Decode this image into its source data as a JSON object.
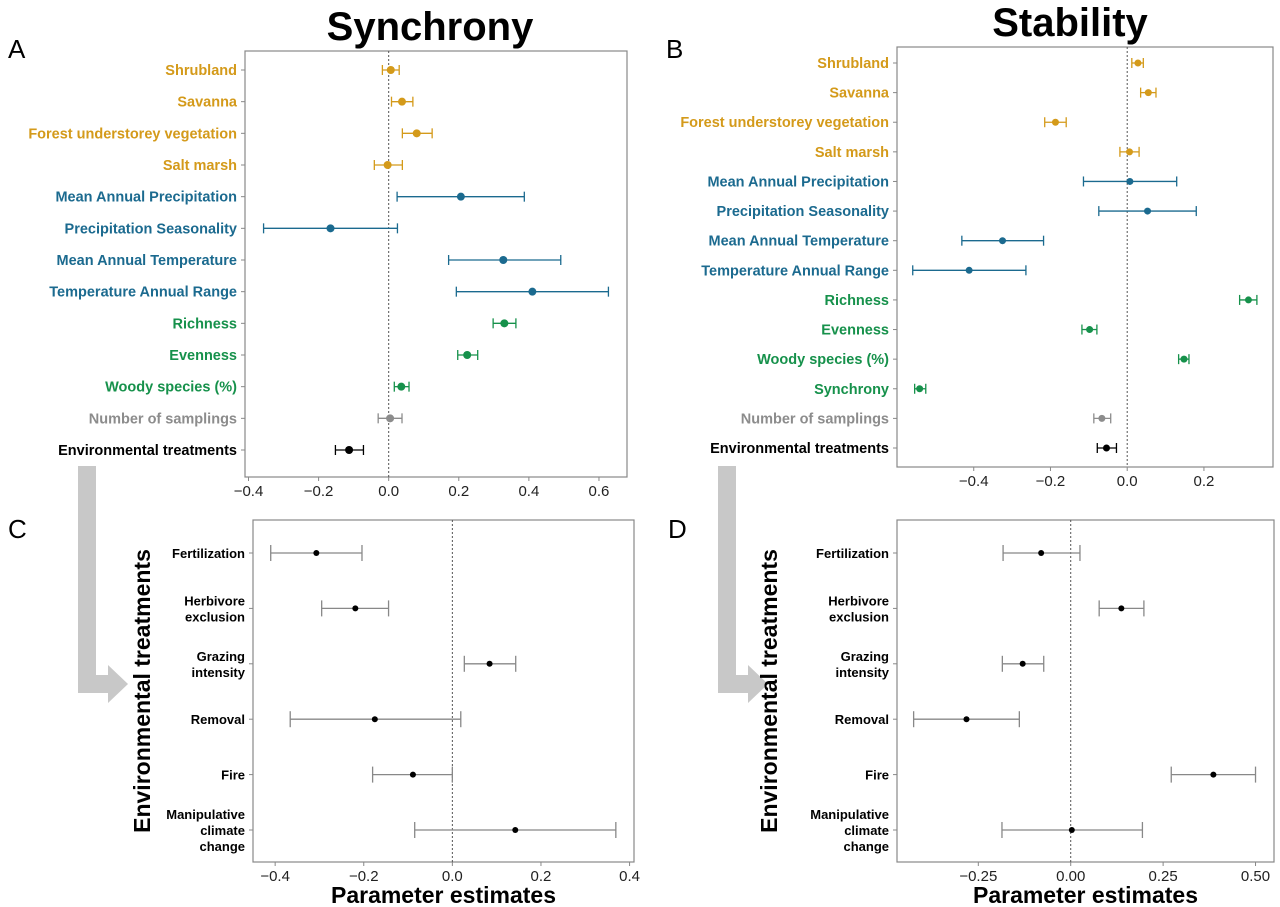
{
  "colors": {
    "habitat": "#d49a1a",
    "climate": "#1b6a8f",
    "community": "#16914b",
    "sampling": "#8c8c8c",
    "treatment": "#000000",
    "arrow": "#c8c8c8"
  },
  "chart_data": [
    {
      "panel": "A",
      "type": "forest",
      "title": "Synchrony",
      "xlabel": "",
      "xlim": [
        -0.41,
        0.68
      ],
      "xticks": [
        -0.4,
        -0.2,
        0.0,
        0.2,
        0.4,
        0.6
      ],
      "xtick_labels": [
        "-0.4",
        "-0.2",
        "0.0",
        "0.2",
        "0.4",
        "0.6"
      ],
      "reference_line": 0,
      "rows": [
        {
          "label": "Shrubland",
          "estimate": 0.006,
          "lower": -0.018,
          "upper": 0.03,
          "color": "#d49a1a"
        },
        {
          "label": "Savanna",
          "estimate": 0.038,
          "lower": 0.008,
          "upper": 0.069,
          "color": "#d49a1a"
        },
        {
          "label": "Forest understorey vegetation",
          "estimate": 0.08,
          "lower": 0.039,
          "upper": 0.124,
          "color": "#d49a1a"
        },
        {
          "label": "Salt marsh",
          "estimate": -0.003,
          "lower": -0.041,
          "upper": 0.039,
          "color": "#d49a1a"
        },
        {
          "label": "Mean Annual Precipitation",
          "estimate": 0.206,
          "lower": 0.024,
          "upper": 0.387,
          "color": "#1b6a8f"
        },
        {
          "label": "Precipitation Seasonality",
          "estimate": -0.166,
          "lower": -0.357,
          "upper": 0.025,
          "color": "#1b6a8f"
        },
        {
          "label": "Mean Annual Temperature",
          "estimate": 0.327,
          "lower": 0.171,
          "upper": 0.491,
          "color": "#1b6a8f"
        },
        {
          "label": "Temperature Annual Range",
          "estimate": 0.41,
          "lower": 0.193,
          "upper": 0.627,
          "color": "#1b6a8f"
        },
        {
          "label": "Richness",
          "estimate": 0.33,
          "lower": 0.298,
          "upper": 0.363,
          "color": "#16914b"
        },
        {
          "label": "Evenness",
          "estimate": 0.224,
          "lower": 0.197,
          "upper": 0.254,
          "color": "#16914b"
        },
        {
          "label": "Woody species (%)",
          "estimate": 0.036,
          "lower": 0.016,
          "upper": 0.058,
          "color": "#16914b"
        },
        {
          "label": "Number of samplings",
          "estimate": 0.004,
          "lower": -0.03,
          "upper": 0.038,
          "color": "#8c8c8c"
        },
        {
          "label": "Environmental treatments",
          "estimate": -0.113,
          "lower": -0.152,
          "upper": -0.072,
          "color": "#000000"
        }
      ]
    },
    {
      "panel": "B",
      "type": "forest",
      "title": "Stability",
      "xlabel": "",
      "xlim": [
        -0.6,
        0.38
      ],
      "xticks": [
        -0.4,
        -0.2,
        0.0,
        0.2
      ],
      "xtick_labels": [
        "-0.4",
        "-0.2",
        "0.0",
        "0.2"
      ],
      "reference_line": 0,
      "rows": [
        {
          "label": "Shrubland",
          "estimate": 0.028,
          "lower": 0.012,
          "upper": 0.042,
          "color": "#d49a1a"
        },
        {
          "label": "Savanna",
          "estimate": 0.055,
          "lower": 0.035,
          "upper": 0.075,
          "color": "#d49a1a"
        },
        {
          "label": "Forest understorey vegetation",
          "estimate": -0.187,
          "lower": -0.215,
          "upper": -0.159,
          "color": "#d49a1a"
        },
        {
          "label": "Salt marsh",
          "estimate": 0.006,
          "lower": -0.019,
          "upper": 0.031,
          "color": "#d49a1a"
        },
        {
          "label": "Mean Annual Precipitation",
          "estimate": 0.007,
          "lower": -0.114,
          "upper": 0.129,
          "color": "#1b6a8f"
        },
        {
          "label": "Precipitation Seasonality",
          "estimate": 0.053,
          "lower": -0.074,
          "upper": 0.18,
          "color": "#1b6a8f"
        },
        {
          "label": "Mean Annual Temperature",
          "estimate": -0.325,
          "lower": -0.431,
          "upper": -0.218,
          "color": "#1b6a8f"
        },
        {
          "label": "Temperature Annual Range",
          "estimate": -0.412,
          "lower": -0.559,
          "upper": -0.264,
          "color": "#1b6a8f"
        },
        {
          "label": "Richness",
          "estimate": 0.316,
          "lower": 0.293,
          "upper": 0.338,
          "color": "#16914b"
        },
        {
          "label": "Evenness",
          "estimate": -0.098,
          "lower": -0.118,
          "upper": -0.079,
          "color": "#16914b"
        },
        {
          "label": "Woody species (%)",
          "estimate": 0.148,
          "lower": 0.134,
          "upper": 0.161,
          "color": "#16914b"
        },
        {
          "label": "Synchrony",
          "estimate": -0.541,
          "lower": -0.554,
          "upper": -0.525,
          "color": "#16914b"
        },
        {
          "label": "Number of samplings",
          "estimate": -0.066,
          "lower": -0.087,
          "upper": -0.043,
          "color": "#8c8c8c"
        },
        {
          "label": "Environmental treatments",
          "estimate": -0.054,
          "lower": -0.078,
          "upper": -0.028,
          "color": "#000000"
        }
      ]
    },
    {
      "panel": "C",
      "type": "forest",
      "title": "",
      "xlabel": "Parameter estimates",
      "ylabel": "Environmental treatments",
      "xlim": [
        -0.45,
        0.41
      ],
      "xticks": [
        -0.4,
        -0.2,
        0.0,
        0.2,
        0.4
      ],
      "xtick_labels": [
        "-0.4",
        "-0.2",
        "0.0",
        "0.2",
        "0.4"
      ],
      "reference_line": 0,
      "rows": [
        {
          "label": "Fertilization",
          "estimate": -0.307,
          "lower": -0.41,
          "upper": -0.204,
          "color": "#000000"
        },
        {
          "label": "Herbivore\nexclusion",
          "estimate": -0.219,
          "lower": -0.295,
          "upper": -0.144,
          "color": "#000000"
        },
        {
          "label": "Grazing\nintensity",
          "estimate": 0.084,
          "lower": 0.027,
          "upper": 0.143,
          "color": "#000000"
        },
        {
          "label": "Removal",
          "estimate": -0.175,
          "lower": -0.366,
          "upper": 0.019,
          "color": "#000000"
        },
        {
          "label": "Fire",
          "estimate": -0.089,
          "lower": -0.18,
          "upper": 0.0,
          "color": "#000000"
        },
        {
          "label": "Manipulative\nclimate\nchange",
          "estimate": 0.142,
          "lower": -0.085,
          "upper": 0.369,
          "color": "#000000"
        }
      ]
    },
    {
      "panel": "D",
      "type": "forest",
      "title": "",
      "xlabel": "Parameter estimates",
      "ylabel": "Environmental treatments",
      "xlim": [
        -0.47,
        0.55
      ],
      "xticks": [
        -0.25,
        0.0,
        0.25,
        0.5
      ],
      "xtick_labels": [
        "-0.25",
        "0.00",
        "0.25",
        "0.50"
      ],
      "reference_line": 0,
      "rows": [
        {
          "label": "Fertilization",
          "estimate": -0.08,
          "lower": -0.183,
          "upper": 0.025,
          "color": "#000000"
        },
        {
          "label": "Herbivore\nexclusion",
          "estimate": 0.137,
          "lower": 0.077,
          "upper": 0.198,
          "color": "#000000"
        },
        {
          "label": "Grazing\nintensity",
          "estimate": -0.13,
          "lower": -0.185,
          "upper": -0.073,
          "color": "#000000"
        },
        {
          "label": "Removal",
          "estimate": -0.282,
          "lower": -0.425,
          "upper": -0.139,
          "color": "#000000"
        },
        {
          "label": "Fire",
          "estimate": 0.386,
          "lower": 0.272,
          "upper": 0.5,
          "color": "#000000"
        },
        {
          "label": "Manipulative\nclimate\nchange",
          "estimate": 0.003,
          "lower": -0.186,
          "upper": 0.194,
          "color": "#000000"
        }
      ]
    }
  ]
}
